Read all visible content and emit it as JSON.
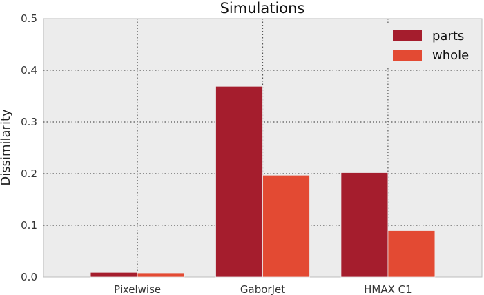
{
  "chart_data": {
    "type": "bar",
    "title": "Simulations",
    "xlabel": "",
    "ylabel": "Dissimilarity",
    "categories": [
      "Pixelwise",
      "GaborJet",
      "HMAX C1"
    ],
    "series": [
      {
        "name": "parts",
        "values": [
          0.009,
          0.369,
          0.202
        ],
        "color": "#a51d2d"
      },
      {
        "name": "whole",
        "values": [
          0.008,
          0.197,
          0.09
        ],
        "color": "#e34a33"
      }
    ],
    "ylim": [
      0,
      0.5
    ],
    "yticks": [
      "0.0",
      "0.1",
      "0.2",
      "0.3",
      "0.4",
      "0.5"
    ],
    "grid": true,
    "legend_position": "top-right",
    "background": "#ececec"
  }
}
